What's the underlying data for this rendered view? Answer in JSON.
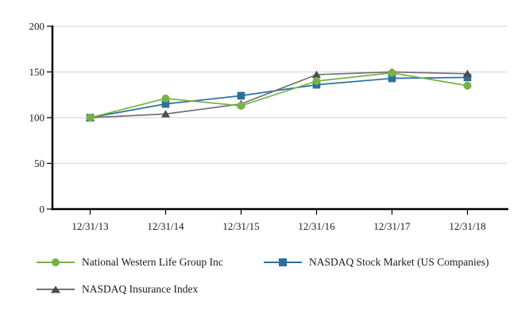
{
  "chart_data": {
    "type": "line",
    "title": "",
    "categories": [
      "12/31/13",
      "12/31/14",
      "12/31/15",
      "12/31/16",
      "12/31/17",
      "12/31/18"
    ],
    "series": [
      {
        "name": "National Western Life Group Inc",
        "marker": "circle",
        "line_color": "#76b245",
        "marker_color": "#76b245",
        "z": 3,
        "values": [
          100,
          121,
          113,
          140,
          149,
          135
        ]
      },
      {
        "name": "NASDAQ Stock Market (US Companies)",
        "marker": "square",
        "line_color": "#2c6f9e",
        "marker_color": "#2c6f9e",
        "z": 1,
        "values": [
          100,
          115,
          124,
          136,
          143,
          144
        ]
      },
      {
        "name": "NASDAQ Insurance Index",
        "marker": "triangle",
        "line_color": "#737373",
        "marker_color": "#4d4d4d",
        "z": 2,
        "values": [
          100,
          104,
          115,
          147,
          150,
          148
        ]
      }
    ],
    "xlabel": "",
    "ylabel": "",
    "ylim": [
      0,
      200
    ],
    "yticks": [
      0,
      50,
      100,
      150,
      200
    ],
    "grid": true,
    "legend_position": "bottom"
  },
  "colors": {
    "grid": "#dadada",
    "axis": "#000000",
    "text": "#1a1a1a",
    "background": "#ffffff"
  }
}
